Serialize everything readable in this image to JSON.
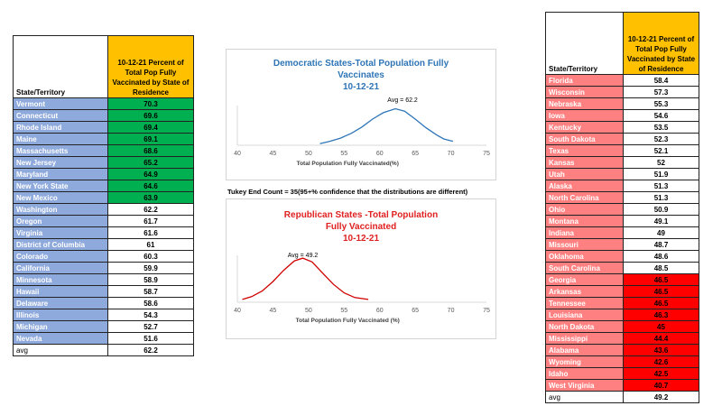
{
  "left_table": {
    "header_state": "State/Territory",
    "header_value": "10-12-21 Percent of Total Pop Fully Vaccinated by State of Residence",
    "header_color": "#ffc000",
    "state_color": "#8ea9db",
    "highlight_color": "#00b050",
    "rows": [
      {
        "state": "Vermont",
        "value": "70.3",
        "highlight": true
      },
      {
        "state": "Connecticut",
        "value": "69.6",
        "highlight": true
      },
      {
        "state": "Rhode Island",
        "value": "69.4",
        "highlight": true
      },
      {
        "state": "Maine",
        "value": "69.1",
        "highlight": true
      },
      {
        "state": "Massachusetts",
        "value": "68.6",
        "highlight": true
      },
      {
        "state": "New Jersey",
        "value": "65.2",
        "highlight": true
      },
      {
        "state": "Maryland",
        "value": "64.9",
        "highlight": true
      },
      {
        "state": "New York State",
        "value": "64.6",
        "highlight": true
      },
      {
        "state": "New Mexico",
        "value": "63.9",
        "highlight": true
      },
      {
        "state": "Washington",
        "value": "62.2",
        "highlight": false
      },
      {
        "state": "Oregon",
        "value": "61.7",
        "highlight": false
      },
      {
        "state": "Virginia",
        "value": "61.6",
        "highlight": false
      },
      {
        "state": "District of Columbia",
        "value": "61",
        "highlight": false
      },
      {
        "state": "Colorado",
        "value": "60.3",
        "highlight": false
      },
      {
        "state": "California",
        "value": "59.9",
        "highlight": false
      },
      {
        "state": "Minnesota",
        "value": "58.9",
        "highlight": false
      },
      {
        "state": "Hawaii",
        "value": "58.7",
        "highlight": false
      },
      {
        "state": "Delaware",
        "value": "58.6",
        "highlight": false
      },
      {
        "state": "Illinois",
        "value": "54.3",
        "highlight": false
      },
      {
        "state": "Michigan",
        "value": "52.7",
        "highlight": false
      },
      {
        "state": "Nevada",
        "value": "51.6",
        "highlight": false
      },
      {
        "state": "avg",
        "value": "62.2",
        "highlight": false
      }
    ]
  },
  "right_table": {
    "header_state": "State/Territory",
    "header_value": "10-12-21 Percent of Total Pop Fully Vaccinated by State of Residence",
    "header_color": "#ffc000",
    "state_color": "#ff8080",
    "highlight_color": "#ff0000",
    "rows": [
      {
        "state": "Florida",
        "value": "58.4",
        "highlight": false
      },
      {
        "state": "Wisconsin",
        "value": "57.3",
        "highlight": false
      },
      {
        "state": "Nebraska",
        "value": "55.3",
        "highlight": false
      },
      {
        "state": "Iowa",
        "value": "54.6",
        "highlight": false
      },
      {
        "state": "Kentucky",
        "value": "53.5",
        "highlight": false
      },
      {
        "state": "South Dakota",
        "value": "52.3",
        "highlight": false
      },
      {
        "state": "Texas",
        "value": "52.1",
        "highlight": false
      },
      {
        "state": "Kansas",
        "value": "52",
        "highlight": false
      },
      {
        "state": "Utah",
        "value": "51.9",
        "highlight": false
      },
      {
        "state": "Alaska",
        "value": "51.3",
        "highlight": false
      },
      {
        "state": "North Carolina",
        "value": "51.3",
        "highlight": false
      },
      {
        "state": "Ohio",
        "value": "50.9",
        "highlight": false
      },
      {
        "state": "Montana",
        "value": "49.1",
        "highlight": false
      },
      {
        "state": "Indiana",
        "value": "49",
        "highlight": false
      },
      {
        "state": "Missouri",
        "value": "48.7",
        "highlight": false
      },
      {
        "state": "Oklahoma",
        "value": "48.6",
        "highlight": false
      },
      {
        "state": "South Carolina",
        "value": "48.5",
        "highlight": false
      },
      {
        "state": "Georgia",
        "value": "46.5",
        "highlight": true
      },
      {
        "state": "Arkansas",
        "value": "46.5",
        "highlight": true
      },
      {
        "state": "Tennessee",
        "value": "46.5",
        "highlight": true
      },
      {
        "state": "Louisiana",
        "value": "46.3",
        "highlight": true
      },
      {
        "state": "North Dakota",
        "value": "45",
        "highlight": true
      },
      {
        "state": "Mississippi",
        "value": "44.4",
        "highlight": true
      },
      {
        "state": "Alabama",
        "value": "43.6",
        "highlight": true
      },
      {
        "state": "Wyoming",
        "value": "42.6",
        "highlight": true
      },
      {
        "state": "Idaho",
        "value": "42.5",
        "highlight": true
      },
      {
        "state": "West Virginia",
        "value": "40.7",
        "highlight": true
      },
      {
        "state": "avg",
        "value": "49.2",
        "highlight": false
      }
    ]
  },
  "tukey_note": "Tukey End Count = 35(95+% confidence that the distributions are different)",
  "chart_data": [
    {
      "type": "line",
      "title_lines": [
        "Democratic States-Total Population Fully",
        "Vaccinates",
        "10-12-21"
      ],
      "title_color": "#2e75b6",
      "line_color": "#2e75b6",
      "xlabel": "Total Population Fully Vaccinated(%)",
      "ylabel": "",
      "xlim": [
        40,
        75
      ],
      "xticks": [
        "40",
        "45",
        "50",
        "55",
        "60",
        "65",
        "70",
        "75"
      ],
      "grid": false,
      "annotation": {
        "text": "Avg = 62.2",
        "x": 62.2
      },
      "series": [
        {
          "x": [
            51.6,
            53,
            54.5,
            56,
            57.5,
            59,
            60.5,
            62.2,
            63.5,
            65,
            66.5,
            68,
            69,
            70.3
          ],
          "y": [
            0.02,
            0.05,
            0.09,
            0.15,
            0.23,
            0.33,
            0.41,
            0.46,
            0.43,
            0.33,
            0.22,
            0.13,
            0.08,
            0.05
          ]
        }
      ]
    },
    {
      "type": "line",
      "title_lines": [
        "Republican States -Total Population",
        "Fully Vaccinated",
        "10-12-21"
      ],
      "title_color": "#e02020",
      "line_color": "#d00000",
      "xlabel": "Total Population Fully Vaccinated (%)",
      "ylabel": "",
      "xlim": [
        40,
        75
      ],
      "xticks": [
        "40",
        "45",
        "50",
        "55",
        "60",
        "65",
        "70",
        "75"
      ],
      "grid": false,
      "annotation": {
        "text": "Avg = 49.2",
        "x": 49.2
      },
      "series": [
        {
          "x": [
            40.7,
            42,
            43.5,
            45,
            46.5,
            48,
            49.2,
            50.5,
            52,
            53.5,
            55,
            56.5,
            58.4
          ],
          "y": [
            0.03,
            0.06,
            0.12,
            0.22,
            0.34,
            0.44,
            0.47,
            0.43,
            0.31,
            0.19,
            0.1,
            0.05,
            0.03
          ]
        }
      ]
    }
  ]
}
